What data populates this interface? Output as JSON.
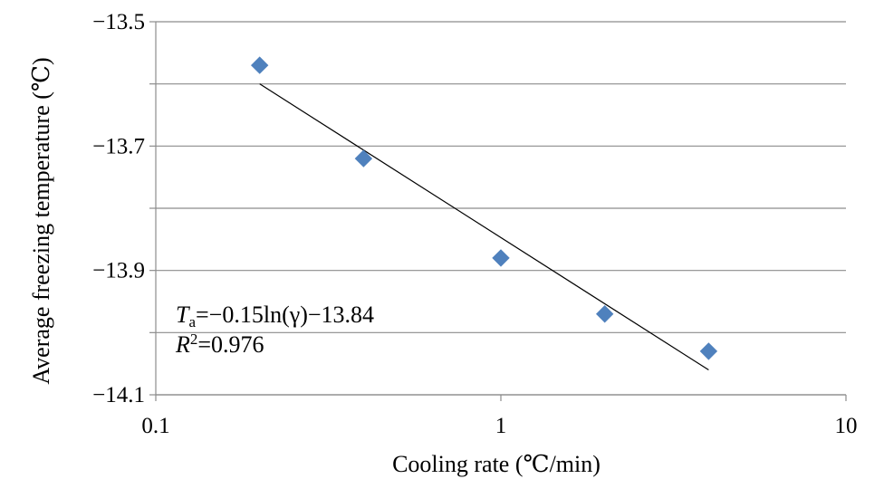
{
  "chart_data": {
    "type": "scatter",
    "xlabel": "Cooling rate (℃/min)",
    "ylabel": "Average freezing temperature (℃)",
    "x_scale": "log",
    "xlim": [
      0.1,
      10
    ],
    "ylim": [
      -14.1,
      -13.5
    ],
    "x_ticks": [
      0.1,
      1,
      10
    ],
    "x_tick_labels": [
      "0.1",
      "1",
      "10"
    ],
    "y_ticks": [
      -13.5,
      -13.6,
      -13.7,
      -13.8,
      -13.9,
      -14.0,
      -14.1
    ],
    "y_tick_labels": [
      "−13.5",
      "−13.7",
      "−13.9",
      "−14.1"
    ],
    "y_labeled_ticks": [
      -13.5,
      -13.7,
      -13.9,
      -14.1
    ],
    "grid": {
      "horizontal": true,
      "vertical": false
    },
    "series": [
      {
        "marker": "diamond",
        "color": "#4F81BD",
        "x": [
          0.2,
          0.4,
          1.0,
          2.0,
          4.0
        ],
        "y": [
          -13.57,
          -13.72,
          -13.88,
          -13.97,
          -14.03
        ]
      }
    ],
    "trendline": {
      "type": "log",
      "color": "#000000",
      "x_range": [
        0.2,
        4.0
      ],
      "y_range": [
        -13.6,
        -14.06
      ]
    },
    "annotation": {
      "line1_var": "T",
      "line1_sub": "a",
      "line1_rest": "=−0.15ln(γ)−13.84",
      "line2_var": "R",
      "line2_sup": "2",
      "line2_rest": "=0.976"
    }
  }
}
